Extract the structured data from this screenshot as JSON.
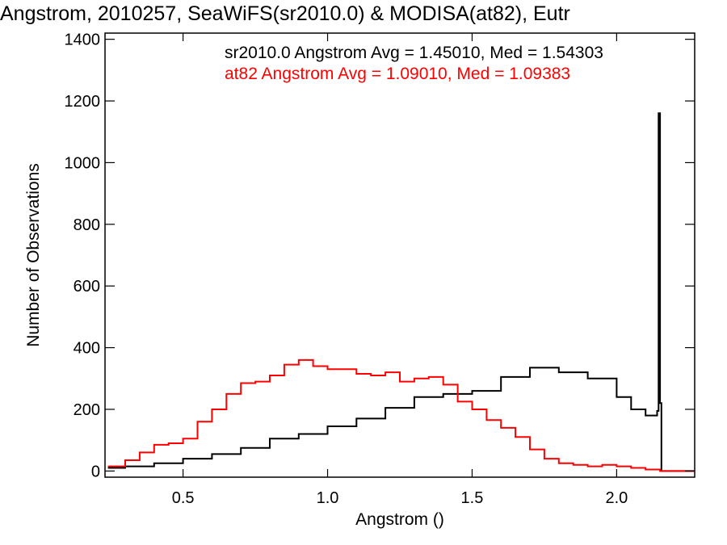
{
  "chart_data": {
    "type": "line",
    "title": "Angstrom, 2010257, SeaWiFS(sr2010.0) & MODISA(at82), Eutr",
    "xlabel": "Angstrom ()",
    "ylabel": "Number of Observations",
    "xlim": [
      0.23,
      2.27
    ],
    "ylim": [
      -20,
      1420
    ],
    "x_ticks": [
      0.5,
      1.0,
      1.5,
      2.0
    ],
    "x_tick_labels": [
      "0.5",
      "1.0",
      "1.5",
      "2.0"
    ],
    "y_ticks": [
      0,
      200,
      400,
      600,
      800,
      1000,
      1200,
      1400
    ],
    "y_tick_labels": [
      "0",
      "200",
      "400",
      "600",
      "800",
      "1000",
      "1200",
      "1400"
    ],
    "grid": false,
    "legend_placement": "top-right",
    "annotations": [
      {
        "text": "sr2010.0 Angstrom Avg = 1.45010, Med = 1.54303",
        "color": "#000000"
      },
      {
        "text": "at82 Angstrom Avg = 1.09010, Med = 1.09383",
        "color": "#ff0000"
      }
    ],
    "series": [
      {
        "name": "sr2010.0",
        "color": "#000000",
        "style": "step",
        "x": [
          0.24,
          0.3,
          0.4,
          0.5,
          0.6,
          0.7,
          0.8,
          0.9,
          1.0,
          1.1,
          1.2,
          1.3,
          1.4,
          1.5,
          1.6,
          1.7,
          1.8,
          1.9,
          2.0,
          2.05,
          2.1,
          2.14,
          2.145,
          2.15,
          2.155,
          2.16,
          2.2,
          2.27
        ],
        "y": [
          10,
          15,
          25,
          40,
          55,
          75,
          105,
          120,
          145,
          170,
          205,
          240,
          250,
          260,
          305,
          335,
          320,
          300,
          240,
          200,
          180,
          195,
          1160,
          220,
          0,
          0,
          0,
          0
        ]
      },
      {
        "name": "at82",
        "color": "#ff0000",
        "style": "step",
        "x": [
          0.24,
          0.3,
          0.35,
          0.4,
          0.45,
          0.5,
          0.55,
          0.6,
          0.65,
          0.7,
          0.75,
          0.8,
          0.85,
          0.9,
          0.95,
          1.0,
          1.05,
          1.1,
          1.15,
          1.2,
          1.25,
          1.3,
          1.35,
          1.4,
          1.45,
          1.5,
          1.55,
          1.6,
          1.65,
          1.7,
          1.75,
          1.8,
          1.85,
          1.9,
          1.95,
          2.0,
          2.05,
          2.1,
          2.15,
          2.2,
          2.27
        ],
        "y": [
          15,
          35,
          60,
          85,
          90,
          105,
          160,
          200,
          250,
          285,
          290,
          310,
          345,
          360,
          340,
          330,
          330,
          315,
          310,
          320,
          290,
          300,
          305,
          280,
          225,
          200,
          165,
          140,
          110,
          70,
          40,
          25,
          20,
          15,
          20,
          15,
          10,
          5,
          0,
          0,
          0
        ]
      }
    ]
  }
}
